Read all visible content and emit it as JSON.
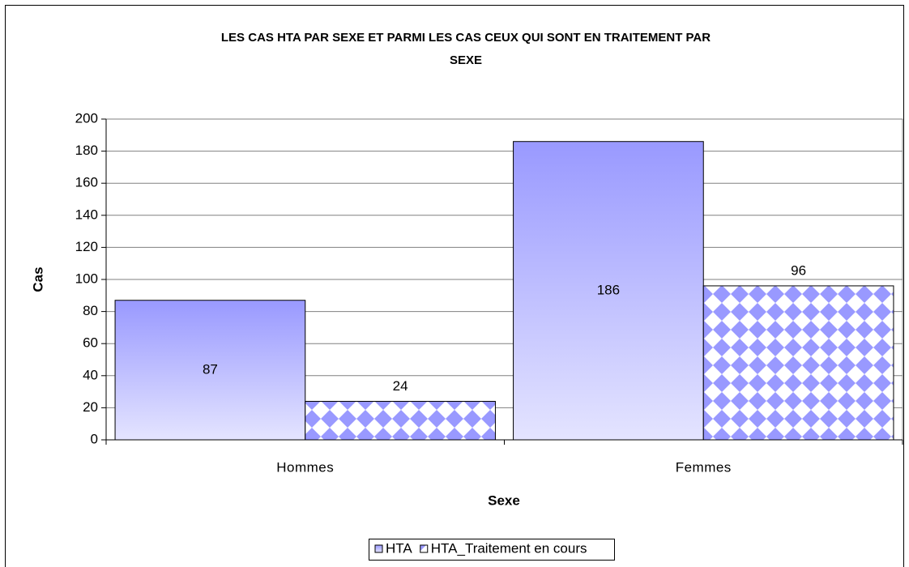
{
  "chart_data": {
    "type": "bar",
    "title": [
      "LES CAS HTA PAR SEXE ET PARMI LES CAS CEUX QUI SONT EN TRAITEMENT PAR",
      "SEXE"
    ],
    "x_label": "Sexe",
    "y_label": "Cas",
    "categories": [
      "Hommes",
      "Femmes"
    ],
    "series": [
      {
        "name": "HTA",
        "color": "#9999ff",
        "fill": "gradient",
        "values": [
          87,
          186
        ]
      },
      {
        "name": "HTA_Traitement en cours",
        "color": "#9999ff",
        "fill": "pattern",
        "values": [
          24,
          96
        ]
      }
    ],
    "ylim": [
      0,
      200
    ],
    "yticks": [
      0,
      20,
      40,
      60,
      80,
      100,
      120,
      140,
      160,
      180,
      200
    ],
    "grid": true,
    "legend": "bottom"
  }
}
